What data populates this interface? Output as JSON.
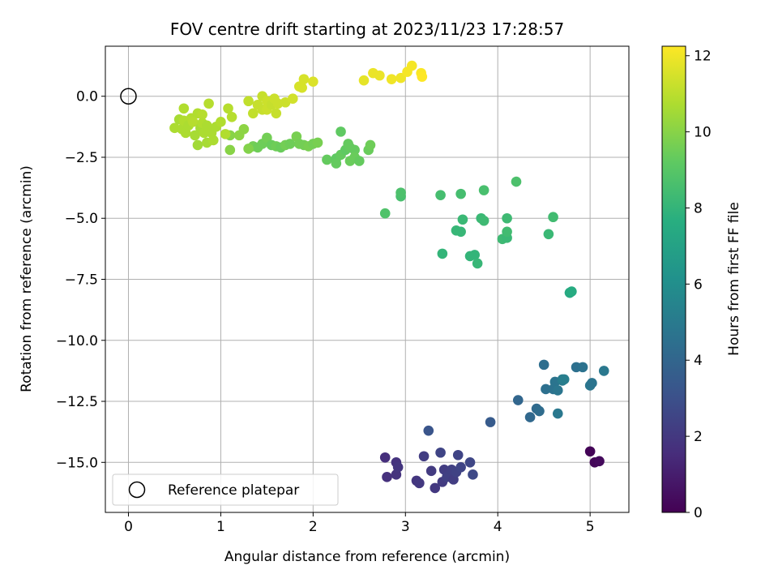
{
  "chart_data": {
    "type": "scatter",
    "title": "FOV centre drift starting at 2023/11/23 17:28:57",
    "xlabel": "Angular distance from reference (arcmin)",
    "ylabel": "Rotation from reference (arcmin)",
    "xlim": [
      -0.25,
      5.42
    ],
    "ylim": [
      -17.05,
      2.05
    ],
    "xticks": [
      0,
      1,
      2,
      3,
      4,
      5
    ],
    "yticks": [
      0.0,
      -2.5,
      -5.0,
      -7.5,
      -10.0,
      -12.5,
      -15.0
    ],
    "xtick_labels": [
      "0",
      "1",
      "2",
      "3",
      "4",
      "5"
    ],
    "ytick_labels": [
      "0.0",
      "−2.5",
      "−5.0",
      "−7.5",
      "−10.0",
      "−12.5",
      "−15.0"
    ],
    "grid": true,
    "legend": {
      "position": "lower-left",
      "entries": [
        {
          "label": "Reference platepar",
          "marker": "open-circle"
        }
      ]
    },
    "reference_point": {
      "x": 0.0,
      "y": 0.0
    },
    "colorbar": {
      "label": "Hours from first FF file",
      "colormap": "viridis",
      "range": [
        0,
        12.25
      ],
      "ticks": [
        0,
        2,
        4,
        6,
        8,
        10,
        12
      ],
      "tick_labels": [
        "0",
        "2",
        "4",
        "6",
        "8",
        "10",
        "12"
      ]
    },
    "points": [
      {
        "x": 5.0,
        "y": -14.55,
        "h": 0.1
      },
      {
        "x": 5.05,
        "y": -15.0,
        "h": 0.2
      },
      {
        "x": 5.1,
        "y": -14.95,
        "h": 0.3
      },
      {
        "x": 2.78,
        "y": -14.8,
        "h": 1.6
      },
      {
        "x": 2.8,
        "y": -15.6,
        "h": 1.7
      },
      {
        "x": 2.9,
        "y": -15.5,
        "h": 1.8
      },
      {
        "x": 2.9,
        "y": -15.0,
        "h": 1.8
      },
      {
        "x": 2.92,
        "y": -15.2,
        "h": 1.9
      },
      {
        "x": 3.12,
        "y": -15.75,
        "h": 1.9
      },
      {
        "x": 3.15,
        "y": -15.85,
        "h": 2.0
      },
      {
        "x": 3.2,
        "y": -14.75,
        "h": 2.2
      },
      {
        "x": 3.28,
        "y": -15.35,
        "h": 2.1
      },
      {
        "x": 3.32,
        "y": -16.05,
        "h": 2.0
      },
      {
        "x": 3.38,
        "y": -14.6,
        "h": 2.5
      },
      {
        "x": 3.4,
        "y": -15.8,
        "h": 2.1
      },
      {
        "x": 3.42,
        "y": -15.3,
        "h": 2.2
      },
      {
        "x": 3.45,
        "y": -15.6,
        "h": 2.3
      },
      {
        "x": 3.5,
        "y": -15.3,
        "h": 2.3
      },
      {
        "x": 3.52,
        "y": -15.7,
        "h": 2.2
      },
      {
        "x": 3.55,
        "y": -15.4,
        "h": 2.4
      },
      {
        "x": 3.57,
        "y": -14.7,
        "h": 2.5
      },
      {
        "x": 3.6,
        "y": -15.2,
        "h": 2.5
      },
      {
        "x": 3.7,
        "y": -15.0,
        "h": 2.6
      },
      {
        "x": 3.73,
        "y": -15.5,
        "h": 2.7
      },
      {
        "x": 3.25,
        "y": -13.7,
        "h": 3.2
      },
      {
        "x": 3.92,
        "y": -13.35,
        "h": 3.5
      },
      {
        "x": 4.22,
        "y": -12.45,
        "h": 4.0
      },
      {
        "x": 4.35,
        "y": -13.15,
        "h": 4.1
      },
      {
        "x": 4.42,
        "y": -12.8,
        "h": 4.2
      },
      {
        "x": 4.45,
        "y": -12.9,
        "h": 4.3
      },
      {
        "x": 4.5,
        "y": -11.0,
        "h": 4.4
      },
      {
        "x": 4.52,
        "y": -12.0,
        "h": 4.5
      },
      {
        "x": 4.6,
        "y": -12.0,
        "h": 4.6
      },
      {
        "x": 4.62,
        "y": -11.7,
        "h": 4.7
      },
      {
        "x": 4.65,
        "y": -12.05,
        "h": 4.8
      },
      {
        "x": 4.65,
        "y": -13.0,
        "h": 4.9
      },
      {
        "x": 4.7,
        "y": -11.65,
        "h": 5.0
      },
      {
        "x": 4.7,
        "y": -11.6,
        "h": 5.1
      },
      {
        "x": 4.72,
        "y": -11.6,
        "h": 5.2
      },
      {
        "x": 4.85,
        "y": -11.1,
        "h": 4.5
      },
      {
        "x": 4.92,
        "y": -11.1,
        "h": 4.6
      },
      {
        "x": 5.0,
        "y": -11.85,
        "h": 4.8
      },
      {
        "x": 5.02,
        "y": -11.75,
        "h": 4.7
      },
      {
        "x": 5.15,
        "y": -11.25,
        "h": 4.9
      },
      {
        "x": 4.78,
        "y": -8.05,
        "h": 7.3
      },
      {
        "x": 4.78,
        "y": -8.05,
        "h": 7.4
      },
      {
        "x": 4.8,
        "y": -8.0,
        "h": 7.5
      },
      {
        "x": 3.4,
        "y": -6.45,
        "h": 8.0
      },
      {
        "x": 3.55,
        "y": -5.5,
        "h": 8.1
      },
      {
        "x": 3.6,
        "y": -5.55,
        "h": 8.1
      },
      {
        "x": 3.62,
        "y": -5.05,
        "h": 8.2
      },
      {
        "x": 3.7,
        "y": -6.55,
        "h": 8.0
      },
      {
        "x": 3.75,
        "y": -6.5,
        "h": 8.0
      },
      {
        "x": 3.78,
        "y": -6.85,
        "h": 8.1
      },
      {
        "x": 3.82,
        "y": -5.0,
        "h": 8.2
      },
      {
        "x": 3.85,
        "y": -5.1,
        "h": 8.3
      },
      {
        "x": 4.05,
        "y": -5.85,
        "h": 8.3
      },
      {
        "x": 4.1,
        "y": -5.0,
        "h": 8.3
      },
      {
        "x": 4.1,
        "y": -5.8,
        "h": 8.2
      },
      {
        "x": 4.1,
        "y": -5.55,
        "h": 8.4
      },
      {
        "x": 4.55,
        "y": -5.65,
        "h": 8.2
      },
      {
        "x": 4.6,
        "y": -4.95,
        "h": 8.4
      },
      {
        "x": 2.78,
        "y": -4.8,
        "h": 8.8
      },
      {
        "x": 2.95,
        "y": -4.1,
        "h": 8.6
      },
      {
        "x": 2.95,
        "y": -3.95,
        "h": 8.7
      },
      {
        "x": 3.38,
        "y": -4.05,
        "h": 8.5
      },
      {
        "x": 3.6,
        "y": -4.0,
        "h": 8.5
      },
      {
        "x": 3.85,
        "y": -3.85,
        "h": 8.6
      },
      {
        "x": 4.2,
        "y": -3.5,
        "h": 8.7
      },
      {
        "x": 1.35,
        "y": -2.05,
        "h": 9.6
      },
      {
        "x": 1.4,
        "y": -2.1,
        "h": 9.5
      },
      {
        "x": 1.45,
        "y": -1.95,
        "h": 9.5
      },
      {
        "x": 1.5,
        "y": -1.7,
        "h": 9.6
      },
      {
        "x": 1.55,
        "y": -2.0,
        "h": 9.4
      },
      {
        "x": 1.6,
        "y": -2.05,
        "h": 9.5
      },
      {
        "x": 1.65,
        "y": -2.1,
        "h": 9.4
      },
      {
        "x": 1.7,
        "y": -2.0,
        "h": 9.6
      },
      {
        "x": 1.75,
        "y": -1.95,
        "h": 9.5
      },
      {
        "x": 1.82,
        "y": -1.65,
        "h": 9.7
      },
      {
        "x": 1.85,
        "y": -1.95,
        "h": 9.6
      },
      {
        "x": 1.9,
        "y": -2.0,
        "h": 9.6
      },
      {
        "x": 1.95,
        "y": -2.05,
        "h": 9.7
      },
      {
        "x": 2.0,
        "y": -1.95,
        "h": 9.6
      },
      {
        "x": 2.05,
        "y": -1.9,
        "h": 9.7
      },
      {
        "x": 2.15,
        "y": -2.6,
        "h": 9.3
      },
      {
        "x": 2.25,
        "y": -2.55,
        "h": 9.2
      },
      {
        "x": 2.25,
        "y": -2.75,
        "h": 9.3
      },
      {
        "x": 2.3,
        "y": -2.4,
        "h": 9.3
      },
      {
        "x": 2.3,
        "y": -1.45,
        "h": 9.2
      },
      {
        "x": 2.35,
        "y": -2.2,
        "h": 9.2
      },
      {
        "x": 2.38,
        "y": -1.95,
        "h": 9.3
      },
      {
        "x": 2.4,
        "y": -2.1,
        "h": 9.3
      },
      {
        "x": 2.4,
        "y": -2.65,
        "h": 9.4
      },
      {
        "x": 2.45,
        "y": -2.2,
        "h": 9.3
      },
      {
        "x": 2.45,
        "y": -2.5,
        "h": 9.4
      },
      {
        "x": 2.5,
        "y": -2.65,
        "h": 9.3
      },
      {
        "x": 2.6,
        "y": -2.2,
        "h": 9.4
      },
      {
        "x": 2.62,
        "y": -2.0,
        "h": 9.5
      },
      {
        "x": 1.1,
        "y": -2.2,
        "h": 10.0
      },
      {
        "x": 1.1,
        "y": -1.6,
        "h": 10.0
      },
      {
        "x": 1.2,
        "y": -1.6,
        "h": 10.1
      },
      {
        "x": 1.25,
        "y": -1.35,
        "h": 10.1
      },
      {
        "x": 1.3,
        "y": -2.15,
        "h": 9.9
      },
      {
        "x": 0.5,
        "y": -1.3,
        "h": 10.7
      },
      {
        "x": 0.55,
        "y": -0.95,
        "h": 10.6
      },
      {
        "x": 0.58,
        "y": -1.35,
        "h": 10.7
      },
      {
        "x": 0.6,
        "y": -1.0,
        "h": 10.8
      },
      {
        "x": 0.6,
        "y": -0.5,
        "h": 10.8
      },
      {
        "x": 0.62,
        "y": -1.5,
        "h": 10.7
      },
      {
        "x": 0.65,
        "y": -1.2,
        "h": 10.7
      },
      {
        "x": 0.68,
        "y": -0.9,
        "h": 10.8
      },
      {
        "x": 0.7,
        "y": -1.05,
        "h": 10.9
      },
      {
        "x": 0.72,
        "y": -1.6,
        "h": 10.6
      },
      {
        "x": 0.75,
        "y": -0.7,
        "h": 10.8
      },
      {
        "x": 0.75,
        "y": -2.0,
        "h": 10.5
      },
      {
        "x": 0.78,
        "y": -1.3,
        "h": 10.6
      },
      {
        "x": 0.8,
        "y": -0.75,
        "h": 10.9
      },
      {
        "x": 0.8,
        "y": -1.1,
        "h": 10.8
      },
      {
        "x": 0.82,
        "y": -1.5,
        "h": 10.7
      },
      {
        "x": 0.85,
        "y": -1.2,
        "h": 10.7
      },
      {
        "x": 0.85,
        "y": -1.9,
        "h": 10.6
      },
      {
        "x": 0.87,
        "y": -0.3,
        "h": 10.9
      },
      {
        "x": 0.9,
        "y": -1.5,
        "h": 10.7
      },
      {
        "x": 0.92,
        "y": -1.8,
        "h": 10.7
      },
      {
        "x": 0.95,
        "y": -1.25,
        "h": 10.7
      },
      {
        "x": 1.0,
        "y": -1.05,
        "h": 10.8
      },
      {
        "x": 1.05,
        "y": -1.55,
        "h": 10.8
      },
      {
        "x": 1.08,
        "y": -0.5,
        "h": 10.9
      },
      {
        "x": 1.12,
        "y": -0.85,
        "h": 10.9
      },
      {
        "x": 1.3,
        "y": -0.2,
        "h": 11.1
      },
      {
        "x": 1.35,
        "y": -0.7,
        "h": 11.1
      },
      {
        "x": 1.4,
        "y": -0.35,
        "h": 11.2
      },
      {
        "x": 1.45,
        "y": 0.0,
        "h": 11.2
      },
      {
        "x": 1.45,
        "y": -0.55,
        "h": 11.2
      },
      {
        "x": 1.5,
        "y": -0.2,
        "h": 11.3
      },
      {
        "x": 1.5,
        "y": -0.55,
        "h": 11.3
      },
      {
        "x": 1.55,
        "y": -0.35,
        "h": 11.2
      },
      {
        "x": 1.58,
        "y": -0.1,
        "h": 11.3
      },
      {
        "x": 1.6,
        "y": -0.7,
        "h": 11.2
      },
      {
        "x": 1.62,
        "y": -0.3,
        "h": 11.3
      },
      {
        "x": 1.7,
        "y": -0.25,
        "h": 11.3
      },
      {
        "x": 1.78,
        "y": -0.1,
        "h": 11.4
      },
      {
        "x": 1.85,
        "y": 0.4,
        "h": 11.5
      },
      {
        "x": 1.88,
        "y": 0.35,
        "h": 11.5
      },
      {
        "x": 1.9,
        "y": 0.7,
        "h": 11.5
      },
      {
        "x": 2.0,
        "y": 0.6,
        "h": 11.6
      },
      {
        "x": 2.55,
        "y": 0.65,
        "h": 11.8
      },
      {
        "x": 2.65,
        "y": 0.95,
        "h": 11.9
      },
      {
        "x": 2.72,
        "y": 0.85,
        "h": 11.9
      },
      {
        "x": 2.85,
        "y": 0.7,
        "h": 12.0
      },
      {
        "x": 2.95,
        "y": 0.75,
        "h": 12.0
      },
      {
        "x": 3.02,
        "y": 1.0,
        "h": 12.1
      },
      {
        "x": 3.07,
        "y": 1.25,
        "h": 12.1
      },
      {
        "x": 3.17,
        "y": 0.95,
        "h": 12.2
      },
      {
        "x": 3.18,
        "y": 0.8,
        "h": 12.25
      }
    ]
  }
}
